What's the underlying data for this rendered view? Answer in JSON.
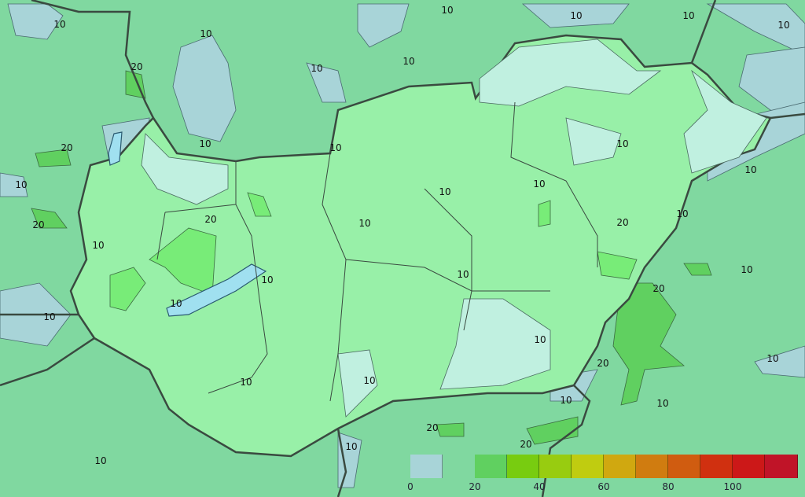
{
  "map": {
    "colors": {
      "outside_background": "#80d8a0",
      "hungary_fill": "#98f0a8",
      "low_0_10": "#a8d4d8",
      "low_interior": "#c0f0e0",
      "band_20_30": "#60d060",
      "border": "#3a4a40"
    },
    "contour_labels": [
      "10",
      "10",
      "10",
      "10",
      "10",
      "10",
      "10",
      "20",
      "20",
      "10",
      "20",
      "10",
      "10",
      "20",
      "10",
      "10",
      "10",
      "10",
      "10",
      "10",
      "10",
      "10",
      "10",
      "20",
      "20",
      "10",
      "10",
      "10",
      "10",
      "10",
      "10",
      "10",
      "20",
      "20",
      "10",
      "10",
      "10",
      "10",
      "20",
      "10",
      "10",
      "10"
    ]
  },
  "legend": {
    "tick_labels": [
      "0",
      "20",
      "40",
      "60",
      "80",
      "100"
    ],
    "colors": [
      "#a8d4d8",
      "#80d8a0",
      "#60d060",
      "#78cc10",
      "#98cc10",
      "#c0cc10",
      "#d0a810",
      "#d07c10",
      "#d05c10",
      "#d03010",
      "#cc1818",
      "#c01428"
    ]
  }
}
